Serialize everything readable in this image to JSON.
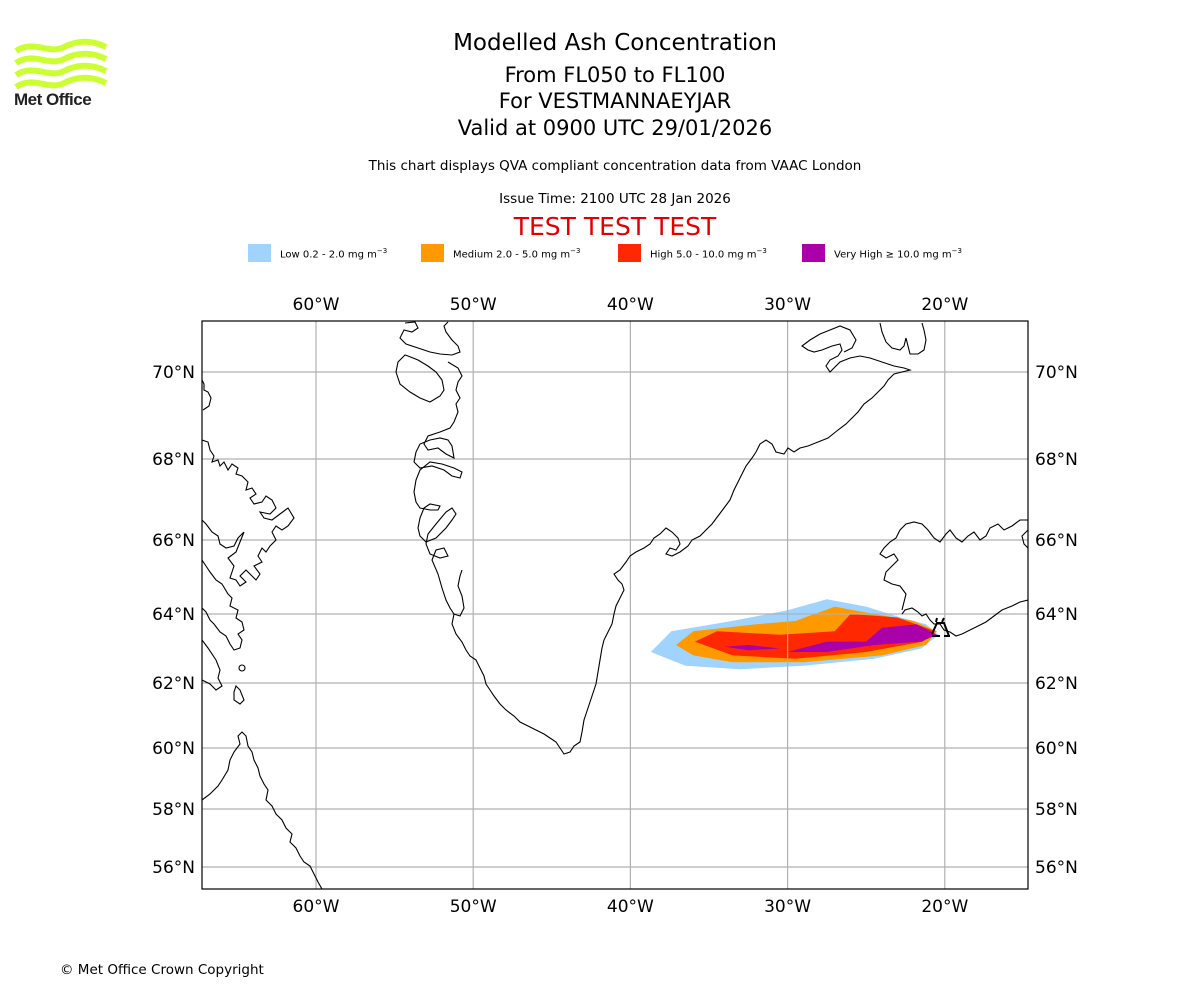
{
  "logo": {
    "text": "Met Office",
    "color": "#ccff33"
  },
  "header": {
    "title": "Modelled Ash Concentration",
    "level_range": "From FL050 to FL100",
    "volcano": "For VESTMANNAEYJAR",
    "valid_time": "Valid at 0900 UTC 29/01/2026",
    "description": "This chart displays QVA compliant concentration data from VAAC London",
    "issue_time": "Issue Time: 2100 UTC 28 Jan 2026",
    "test_banner": "TEST TEST TEST"
  },
  "legend": [
    {
      "name": "low",
      "label": "Low 0.2 - 2.0 mg m",
      "unit_exp": "−3",
      "color": "#a0d4ff"
    },
    {
      "name": "medium",
      "label": "Medium 2.0 - 5.0 mg m",
      "unit_exp": "−3",
      "color": "#ff9900"
    },
    {
      "name": "high",
      "label": "High 5.0 - 10.0 mg m",
      "unit_exp": "−3",
      "color": "#ff2800"
    },
    {
      "name": "very-high",
      "label": "Very High  ≥  10.0 mg m",
      "unit_exp": "−3",
      "color": "#aa00aa"
    }
  ],
  "chart_data": {
    "type": "map",
    "projection": "polar stereographic style (curved parallels)",
    "extent": {
      "lon_min": -67.3,
      "lon_max": -14.8,
      "lat_min": 55.3,
      "lat_max": 71.2
    },
    "grid": true,
    "lon_ticks": [
      {
        "value": -60,
        "label": "60°W"
      },
      {
        "value": -50,
        "label": "50°W"
      },
      {
        "value": -40,
        "label": "40°W"
      },
      {
        "value": -30,
        "label": "30°W"
      },
      {
        "value": -20,
        "label": "20°W"
      }
    ],
    "lat_ticks": [
      {
        "value": 70,
        "label": "70°N"
      },
      {
        "value": 68,
        "label": "68°N"
      },
      {
        "value": 66,
        "label": "66°N"
      },
      {
        "value": 64,
        "label": "64°N"
      },
      {
        "value": 62,
        "label": "62°N"
      },
      {
        "value": 60,
        "label": "60°N"
      },
      {
        "value": 58,
        "label": "58°N"
      },
      {
        "value": 56,
        "label": "56°N"
      }
    ],
    "source_volcano": {
      "name": "VESTMANNAEYJAR",
      "lon": -20.3,
      "lat": 63.4
    },
    "ash_contours": [
      {
        "level": "low",
        "outline": [
          [
            -38.7,
            62.9
          ],
          [
            -37.4,
            63.5
          ],
          [
            -33.5,
            63.8
          ],
          [
            -30.0,
            64.1
          ],
          [
            -27.5,
            64.4
          ],
          [
            -25.0,
            64.2
          ],
          [
            -22.8,
            63.9
          ],
          [
            -21.2,
            63.7
          ],
          [
            -20.4,
            63.4
          ],
          [
            -21.5,
            63.0
          ],
          [
            -24.5,
            62.7
          ],
          [
            -29.0,
            62.5
          ],
          [
            -33.0,
            62.4
          ],
          [
            -36.5,
            62.5
          ]
        ]
      },
      {
        "level": "medium",
        "outline": [
          [
            -37.1,
            63.1
          ],
          [
            -36.0,
            63.5
          ],
          [
            -32.0,
            63.7
          ],
          [
            -29.5,
            63.8
          ],
          [
            -27.0,
            64.2
          ],
          [
            -24.5,
            64.0
          ],
          [
            -22.0,
            63.8
          ],
          [
            -20.5,
            63.5
          ],
          [
            -21.2,
            63.1
          ],
          [
            -24.0,
            62.8
          ],
          [
            -29.0,
            62.6
          ],
          [
            -33.5,
            62.6
          ],
          [
            -36.0,
            62.8
          ]
        ]
      },
      {
        "level": "high",
        "outline": [
          [
            -35.9,
            63.2
          ],
          [
            -34.5,
            63.5
          ],
          [
            -30.5,
            63.4
          ],
          [
            -27.0,
            63.5
          ],
          [
            -26.0,
            64.0
          ],
          [
            -23.0,
            63.9
          ],
          [
            -20.6,
            63.5
          ],
          [
            -21.4,
            63.2
          ],
          [
            -25.0,
            62.9
          ],
          [
            -29.5,
            62.7
          ],
          [
            -33.5,
            62.8
          ]
        ]
      },
      {
        "level": "very-high",
        "outline": [
          [
            -24.0,
            63.6
          ],
          [
            -21.8,
            63.7
          ],
          [
            -20.5,
            63.4
          ],
          [
            -21.5,
            63.2
          ],
          [
            -24.5,
            63.1
          ],
          [
            -27.5,
            62.9
          ],
          [
            -30.0,
            62.9
          ],
          [
            -27.5,
            63.2
          ],
          [
            -25.0,
            63.2
          ]
        ]
      },
      {
        "level": "very-high",
        "outline": [
          [
            -34.0,
            63.05
          ],
          [
            -32.5,
            63.1
          ],
          [
            -30.5,
            63.0
          ],
          [
            -32.5,
            62.95
          ]
        ]
      }
    ],
    "land_features": [
      "Baffin Island",
      "Greenland",
      "Iceland",
      "Labrador"
    ]
  },
  "footer": {
    "copyright": "© Met Office Crown Copyright"
  }
}
